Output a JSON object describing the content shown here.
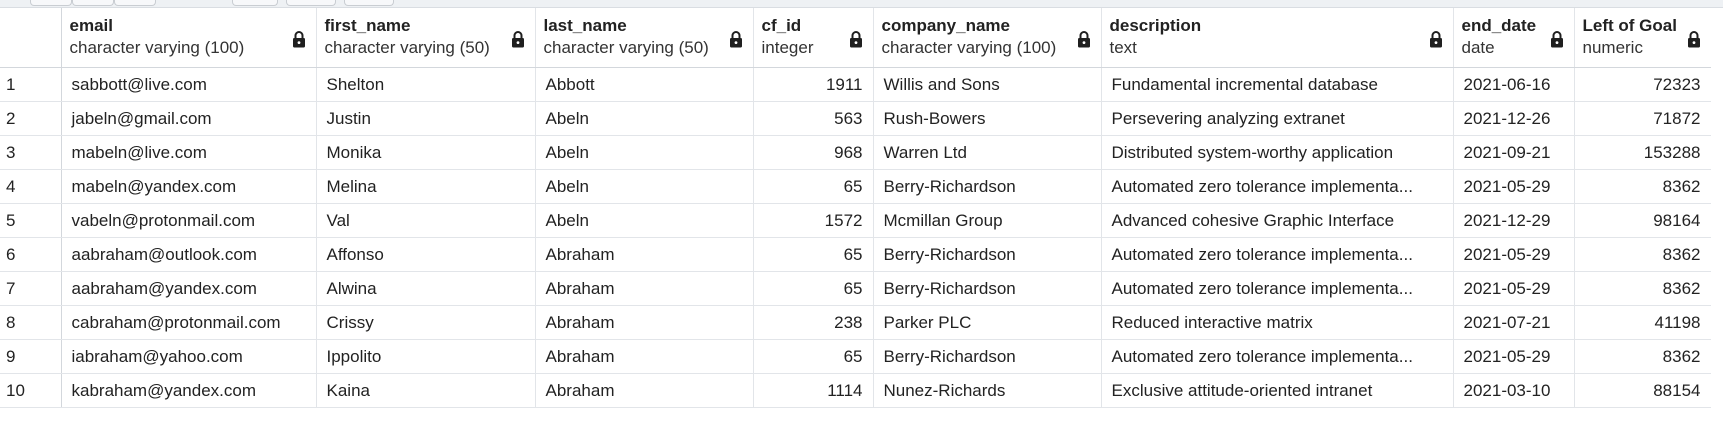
{
  "grid": {
    "columns": [
      {
        "name": "email",
        "type": "character varying (100)",
        "locked": true,
        "align": "left"
      },
      {
        "name": "first_name",
        "type": "character varying (50)",
        "locked": true,
        "align": "left"
      },
      {
        "name": "last_name",
        "type": "character varying (50)",
        "locked": true,
        "align": "left"
      },
      {
        "name": "cf_id",
        "type": "integer",
        "locked": true,
        "align": "right"
      },
      {
        "name": "company_name",
        "type": "character varying (100)",
        "locked": true,
        "align": "left"
      },
      {
        "name": "description",
        "type": "text",
        "locked": true,
        "align": "left"
      },
      {
        "name": "end_date",
        "type": "date",
        "locked": true,
        "align": "left"
      },
      {
        "name": "Left of Goal",
        "type": "numeric",
        "locked": true,
        "align": "right"
      }
    ],
    "rows": [
      {
        "num": "1",
        "cells": [
          "sabbott@live.com",
          "Shelton",
          "Abbott",
          "1911",
          "Willis and Sons",
          "Fundamental incremental database",
          "2021-06-16",
          "72323"
        ]
      },
      {
        "num": "2",
        "cells": [
          "jabeln@gmail.com",
          "Justin",
          "Abeln",
          "563",
          "Rush-Bowers",
          "Persevering analyzing extranet",
          "2021-12-26",
          "71872"
        ]
      },
      {
        "num": "3",
        "cells": [
          "mabeln@live.com",
          "Monika",
          "Abeln",
          "968",
          "Warren Ltd",
          "Distributed system-worthy application",
          "2021-09-21",
          "153288"
        ]
      },
      {
        "num": "4",
        "cells": [
          "mabeln@yandex.com",
          "Melina",
          "Abeln",
          "65",
          "Berry-Richardson",
          "Automated zero tolerance implementa...",
          "2021-05-29",
          "8362"
        ]
      },
      {
        "num": "5",
        "cells": [
          "vabeln@protonmail.com",
          "Val",
          "Abeln",
          "1572",
          "Mcmillan Group",
          "Advanced cohesive Graphic Interface",
          "2021-12-29",
          "98164"
        ]
      },
      {
        "num": "6",
        "cells": [
          "aabraham@outlook.com",
          "Affonso",
          "Abraham",
          "65",
          "Berry-Richardson",
          "Automated zero tolerance implementa...",
          "2021-05-29",
          "8362"
        ]
      },
      {
        "num": "7",
        "cells": [
          "aabraham@yandex.com",
          "Alwina",
          "Abraham",
          "65",
          "Berry-Richardson",
          "Automated zero tolerance implementa...",
          "2021-05-29",
          "8362"
        ]
      },
      {
        "num": "8",
        "cells": [
          "cabraham@protonmail.com",
          "Crissy",
          "Abraham",
          "238",
          "Parker PLC",
          "Reduced interactive matrix",
          "2021-07-21",
          "41198"
        ]
      },
      {
        "num": "9",
        "cells": [
          "iabraham@yahoo.com",
          "Ippolito",
          "Abraham",
          "65",
          "Berry-Richardson",
          "Automated zero tolerance implementa...",
          "2021-05-29",
          "8362"
        ]
      },
      {
        "num": "10",
        "cells": [
          "kabraham@yandex.com",
          "Kaina",
          "Abraham",
          "1114",
          "Nunez-Richards",
          "Exclusive attitude-oriented intranet",
          "2021-03-10",
          "88154"
        ]
      }
    ]
  },
  "icons": {
    "lock": "lock-icon"
  },
  "colors": {
    "grid_line": "#e2e5e9",
    "header_text": "#222222",
    "lock_fill": "#1f1f1f"
  }
}
